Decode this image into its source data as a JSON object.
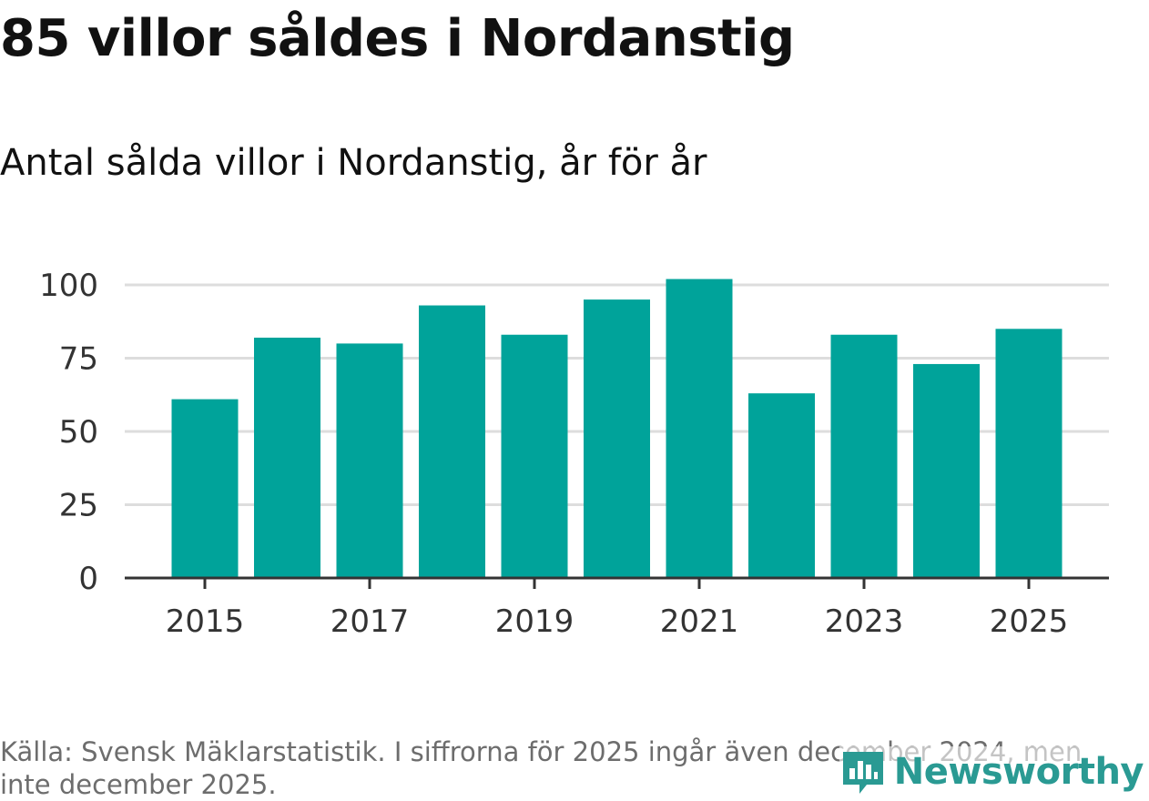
{
  "header": {
    "title": "85 villor såldes i Nordanstig",
    "subtitle": "Antal sålda villor i Nordanstig, år för år"
  },
  "footer": {
    "source": "Källa: Svensk Mäklarstatistik. I siffrorna för 2025 ingår även december 2024, men inte december 2025.",
    "brand": "Newsworthy"
  },
  "colors": {
    "bar": "#00a39a",
    "grid": "#dddddd",
    "axis": "#333333",
    "brand": "#2a9a93"
  },
  "chart_data": {
    "type": "bar",
    "title": "Antal sålda villor i Nordanstig, år för år",
    "xlabel": "",
    "ylabel": "",
    "categories": [
      "2015",
      "2016",
      "2017",
      "2018",
      "2019",
      "2020",
      "2021",
      "2022",
      "2023",
      "2024",
      "2025"
    ],
    "values": [
      61,
      82,
      80,
      93,
      83,
      95,
      102,
      63,
      83,
      73,
      85
    ],
    "x_tick_labels": [
      "2015",
      "2017",
      "2019",
      "2021",
      "2023",
      "2025"
    ],
    "y_ticks": [
      0,
      25,
      50,
      75,
      100
    ],
    "ylim": [
      0,
      105
    ],
    "grid": true
  }
}
